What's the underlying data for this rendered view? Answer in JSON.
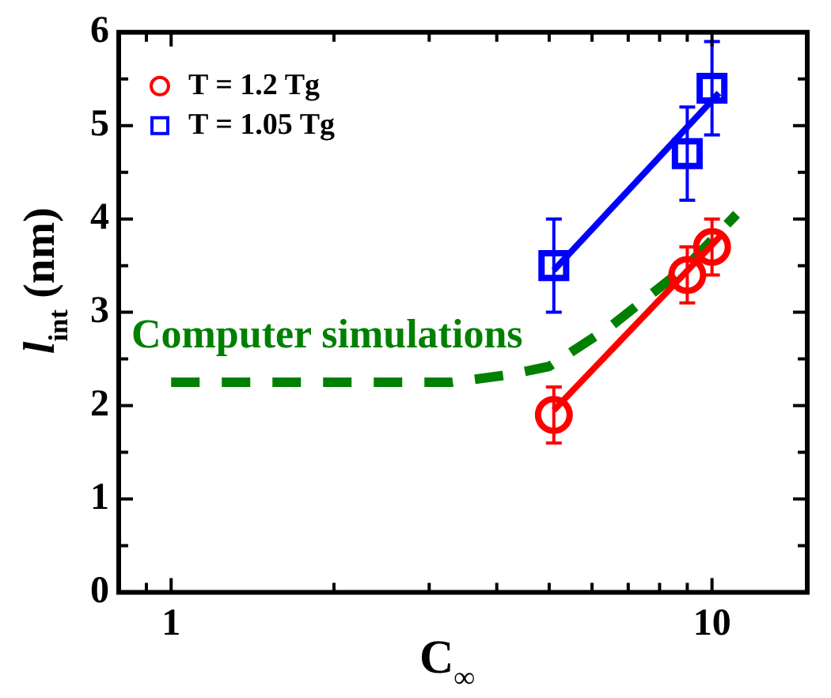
{
  "chart_data": {
    "type": "scatter",
    "xlabel": "C$_{∞}$",
    "ylabel": "l$_{int}$ (nm)",
    "log": "x",
    "xlim": [
      0.8,
      15
    ],
    "xticks": [
      {
        "value": 0.9,
        "label": null
      },
      1,
      {
        "value": 2,
        "label": null
      },
      {
        "value": 3,
        "label": null
      },
      {
        "value": 4,
        "label": null
      },
      {
        "value": 5,
        "label": null
      },
      {
        "value": 6,
        "label": null
      },
      {
        "value": 7,
        "label": null
      },
      {
        "value": 8,
        "label": null
      },
      {
        "value": 9,
        "label": null
      },
      10
    ],
    "ylim": [
      0,
      6
    ],
    "yticks": [
      0,
      {
        "value": 0.5,
        "label": null
      },
      1,
      {
        "value": 1.5,
        "label": null
      },
      2,
      {
        "value": 2.5,
        "label": null
      },
      3,
      {
        "value": 3.5,
        "label": null
      },
      4,
      {
        "value": 4.5,
        "label": null
      },
      5,
      {
        "value": 5.5,
        "label": null
      },
      6
    ],
    "legend": "top left",
    "grid": false,
    "series": [
      {
        "name": "T = 1.2 Tg",
        "color": "#ff0000",
        "marker": "circle",
        "x": [
          5.1,
          9,
          10
        ],
        "values": [
          1.9,
          3.4,
          3.7
        ],
        "errors": [
          0.3,
          0.3,
          0.3
        ]
      },
      {
        "name": "T = 1.05 Tg",
        "color": "#0000ff",
        "marker": "square",
        "x": [
          5.1,
          9,
          10
        ],
        "values": [
          3.5,
          4.7,
          5.4
        ],
        "errors": [
          0.5,
          0.5,
          0.5
        ]
      },
      {
        "type": "line",
        "color": "#ff0000",
        "x": [
          5.1,
          10.5
        ],
        "values": [
          1.95,
          3.85
        ]
      },
      {
        "type": "line",
        "color": "#0000ff",
        "x": [
          5.1,
          10.3
        ],
        "values": [
          3.45,
          5.35
        ]
      },
      {
        "name": "Computer simulations",
        "type": "line",
        "line_style": "dashed",
        "color": "#008000",
        "x": [
          1,
          3.3,
          4.2,
          5,
          6.5,
          9,
          11.1
        ],
        "values": [
          2.25,
          2.25,
          2.33,
          2.42,
          2.85,
          3.5,
          4.05
        ]
      }
    ]
  }
}
